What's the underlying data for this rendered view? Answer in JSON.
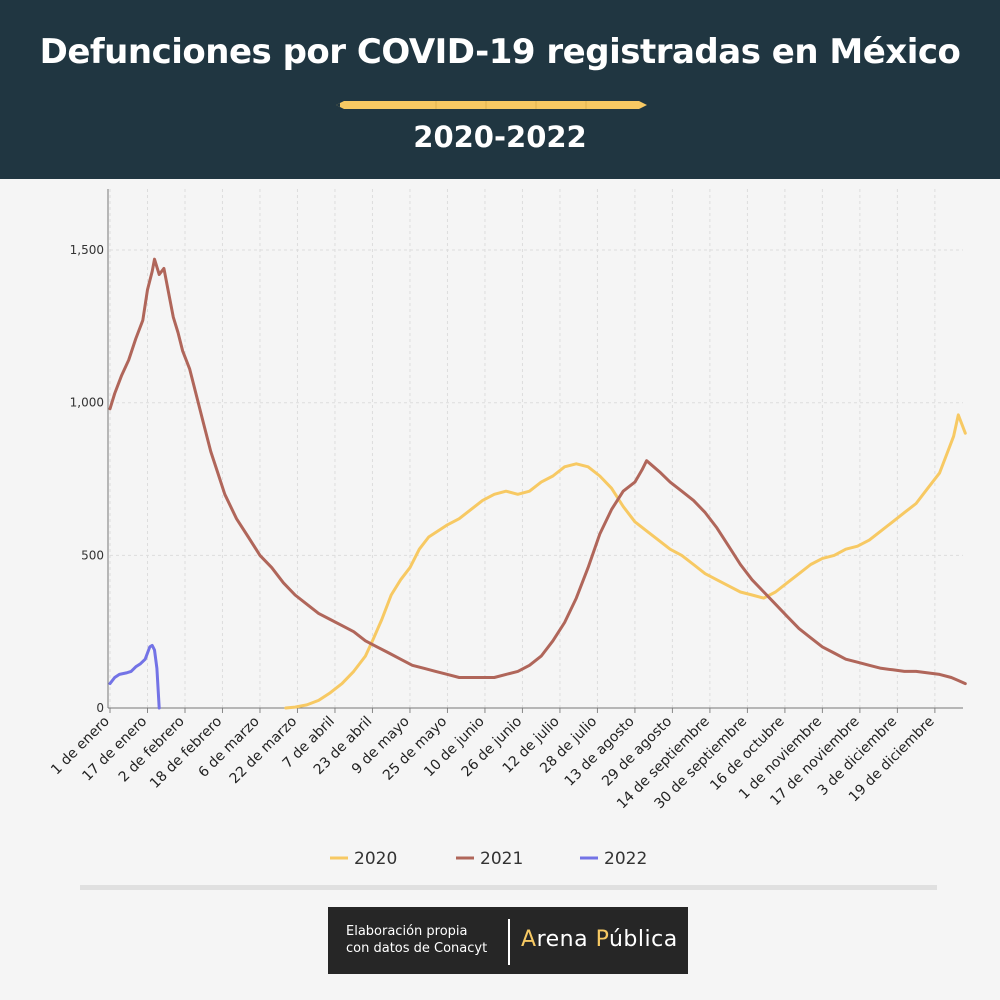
{
  "header": {
    "title": "Defunciones por COVID-19 registradas en México",
    "subtitle": "2020-2022"
  },
  "colors": {
    "header_bg": "#203641",
    "2020": "#f7c963",
    "2021": "#b0665a",
    "2022": "#7373e6"
  },
  "chart_data": {
    "type": "line",
    "title": "Defunciones por COVID-19 registradas en México",
    "subtitle": "2020-2022",
    "xlabel": "",
    "ylabel": "",
    "x_unit": "day of year (1 = 1 de enero)",
    "xlim": [
      1,
      365
    ],
    "ylim": [
      0,
      1700
    ],
    "y_ticks": [
      0,
      500,
      1000,
      1500
    ],
    "y_tick_labels": [
      "0",
      "500",
      "1,000",
      "1,500"
    ],
    "x_ticks": [
      1,
      17,
      33,
      49,
      65,
      81,
      97,
      113,
      129,
      145,
      161,
      177,
      193,
      209,
      225,
      241,
      257,
      273,
      289,
      305,
      321,
      337,
      353
    ],
    "x_tick_labels": [
      "1 de enero",
      "17 de enero",
      "2 de febrero",
      "18 de febrero",
      "6 de marzo",
      "22 de marzo",
      "7 de abril",
      "23 de abril",
      "9 de mayo",
      "25 de mayo",
      "10 de junio",
      "26 de junio",
      "12 de julio",
      "28 de julio",
      "13 de agosto",
      "29 de agosto",
      "14 de septiembre",
      "30 de septiembre",
      "16 de octubre",
      "1 de noviembre",
      "17 de noviembre",
      "3 de diciembre",
      "19 de diciembre"
    ],
    "grid": true,
    "legend_position": "bottom",
    "series": [
      {
        "name": "2020",
        "x": [
          76,
          80,
          85,
          90,
          95,
          100,
          105,
          110,
          113,
          117,
          121,
          125,
          129,
          133,
          137,
          141,
          145,
          150,
          155,
          160,
          165,
          170,
          175,
          180,
          185,
          190,
          195,
          200,
          205,
          210,
          215,
          220,
          225,
          230,
          235,
          240,
          245,
          250,
          255,
          260,
          265,
          270,
          275,
          280,
          285,
          290,
          295,
          300,
          305,
          310,
          315,
          320,
          325,
          330,
          335,
          340,
          345,
          350,
          355,
          358,
          361,
          363,
          366
        ],
        "y": [
          0,
          3,
          10,
          25,
          50,
          80,
          120,
          170,
          220,
          290,
          370,
          420,
          460,
          520,
          560,
          580,
          600,
          620,
          650,
          680,
          700,
          710,
          700,
          710,
          740,
          760,
          790,
          800,
          790,
          760,
          720,
          660,
          610,
          580,
          550,
          520,
          500,
          470,
          440,
          420,
          400,
          380,
          370,
          360,
          380,
          410,
          440,
          470,
          490,
          500,
          520,
          530,
          550,
          580,
          610,
          640,
          670,
          720,
          770,
          830,
          890,
          960,
          900
        ]
      },
      {
        "name": "2021",
        "x": [
          1,
          3,
          6,
          9,
          12,
          15,
          17,
          19,
          20,
          22,
          24,
          26,
          28,
          30,
          32,
          35,
          38,
          41,
          44,
          47,
          50,
          55,
          60,
          65,
          70,
          75,
          80,
          85,
          90,
          95,
          100,
          105,
          110,
          115,
          120,
          125,
          130,
          135,
          140,
          145,
          150,
          155,
          160,
          165,
          170,
          175,
          180,
          185,
          190,
          195,
          200,
          205,
          210,
          215,
          220,
          225,
          228,
          230,
          233,
          236,
          240,
          245,
          250,
          255,
          260,
          265,
          270,
          275,
          280,
          285,
          290,
          295,
          300,
          305,
          310,
          315,
          320,
          325,
          330,
          335,
          340,
          345,
          350,
          355,
          360,
          363,
          366
        ],
        "y": [
          980,
          1030,
          1090,
          1140,
          1210,
          1270,
          1370,
          1430,
          1470,
          1420,
          1440,
          1360,
          1280,
          1230,
          1170,
          1110,
          1020,
          930,
          840,
          770,
          700,
          620,
          560,
          500,
          460,
          410,
          370,
          340,
          310,
          290,
          270,
          250,
          220,
          200,
          180,
          160,
          140,
          130,
          120,
          110,
          100,
          100,
          100,
          100,
          110,
          120,
          140,
          170,
          220,
          280,
          360,
          460,
          570,
          650,
          710,
          740,
          780,
          810,
          790,
          770,
          740,
          710,
          680,
          640,
          590,
          530,
          470,
          420,
          380,
          340,
          300,
          260,
          230,
          200,
          180,
          160,
          150,
          140,
          130,
          125,
          120,
          120,
          115,
          110,
          100,
          90,
          80
        ]
      },
      {
        "name": "2022",
        "x": [
          1,
          3,
          5,
          8,
          10,
          12,
          14,
          16,
          17,
          18,
          19,
          20,
          21,
          22
        ],
        "y": [
          80,
          100,
          110,
          115,
          120,
          135,
          145,
          160,
          180,
          200,
          205,
          190,
          130,
          0
        ]
      }
    ]
  },
  "footer": {
    "credit_line1": "Elaboración propia",
    "credit_line2": "con datos de Conacyt",
    "logo_a": "A",
    "logo_rena": "rena ",
    "logo_p": "P",
    "logo_ublica": "ública"
  }
}
